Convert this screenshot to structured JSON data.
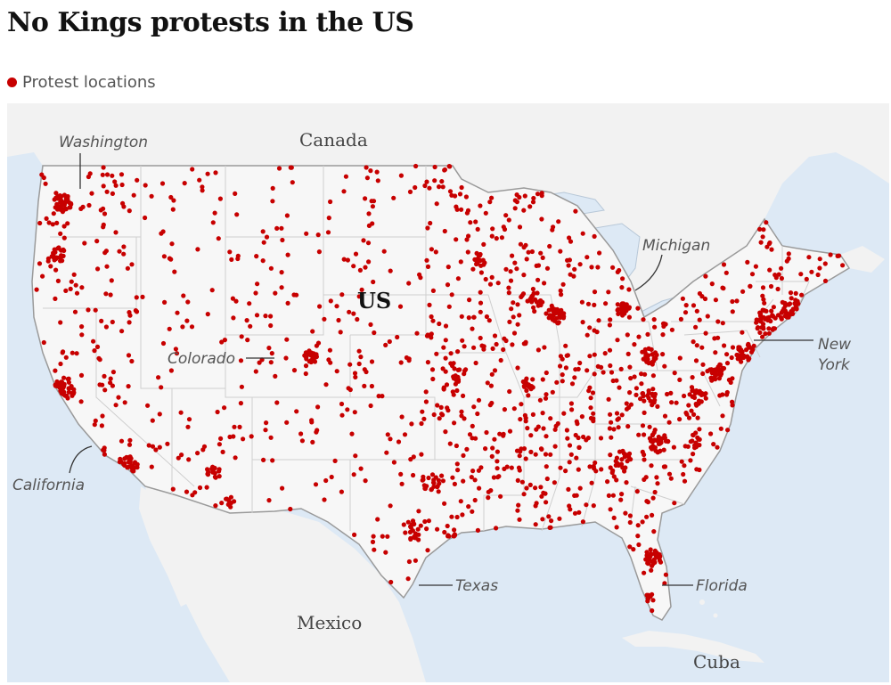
{
  "title": "No Kings protests in the US",
  "legend": {
    "label": "Protest locations",
    "dot_color": "#c70000"
  },
  "colors": {
    "water": "#dde9f5",
    "land": "#f2f2f2",
    "us_land": "#f7f7f7",
    "border": "#9a9a9a",
    "dot": "#c70000"
  },
  "labels": {
    "canada": "Canada",
    "mexico": "Mexico",
    "cuba": "Cuba",
    "us": "US",
    "washington": "Washington",
    "michigan": "Michigan",
    "colorado": "Colorado",
    "california": "California",
    "new_york_1": "New",
    "new_york_2": "York",
    "texas": "Texas",
    "florida": "Florida"
  }
}
